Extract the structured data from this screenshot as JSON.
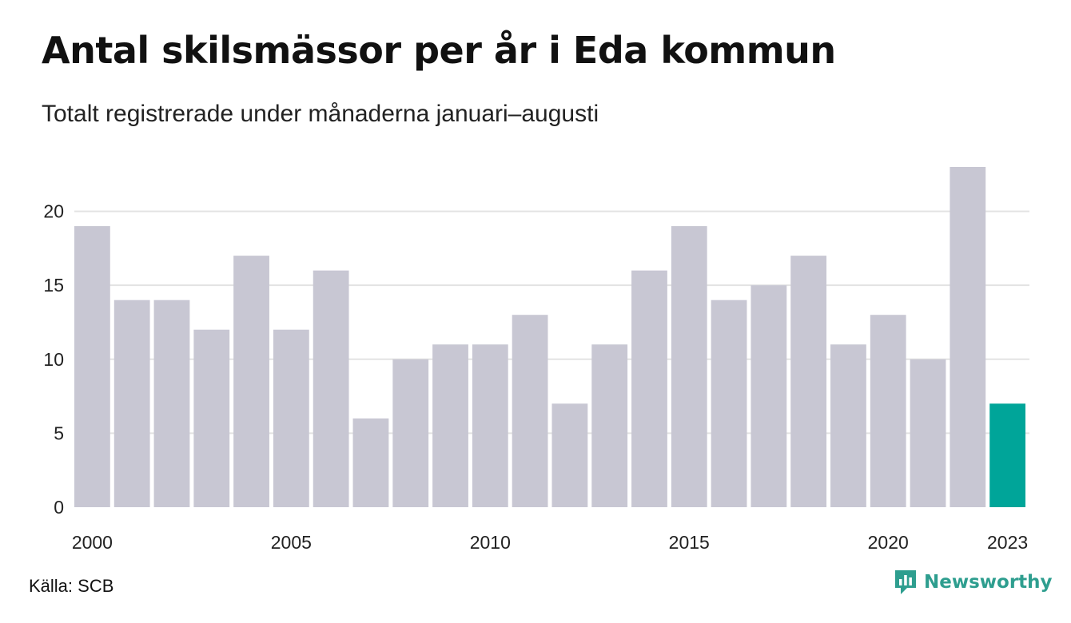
{
  "title": "Antal skilsmässor per år i Eda kommun",
  "subtitle": "Totalt registrerade under månaderna januari–augusti",
  "source": "Källa: SCB",
  "brand": "Newsworthy",
  "colors": {
    "bar": "#c8c7d3",
    "highlight": "#00a599",
    "grid": "#e3e3e3",
    "brand": "#2e9e8f"
  },
  "chart_data": {
    "type": "bar",
    "categories": [
      "2000",
      "2001",
      "2002",
      "2003",
      "2004",
      "2005",
      "2006",
      "2007",
      "2008",
      "2009",
      "2010",
      "2011",
      "2012",
      "2013",
      "2014",
      "2015",
      "2016",
      "2017",
      "2018",
      "2019",
      "2020",
      "2021",
      "2022",
      "2023"
    ],
    "values": [
      19,
      14,
      14,
      12,
      17,
      12,
      16,
      6,
      10,
      11,
      11,
      13,
      7,
      11,
      16,
      19,
      14,
      15,
      17,
      11,
      13,
      10,
      23,
      7
    ],
    "highlight_category": "2023",
    "x_tick_labels": [
      "2000",
      "2005",
      "2010",
      "2015",
      "2020",
      "2023"
    ],
    "y_ticks": [
      0,
      5,
      10,
      15,
      20
    ],
    "ylim": [
      0,
      23
    ],
    "grid": true,
    "legend": "none",
    "xlabel": "",
    "ylabel": ""
  }
}
